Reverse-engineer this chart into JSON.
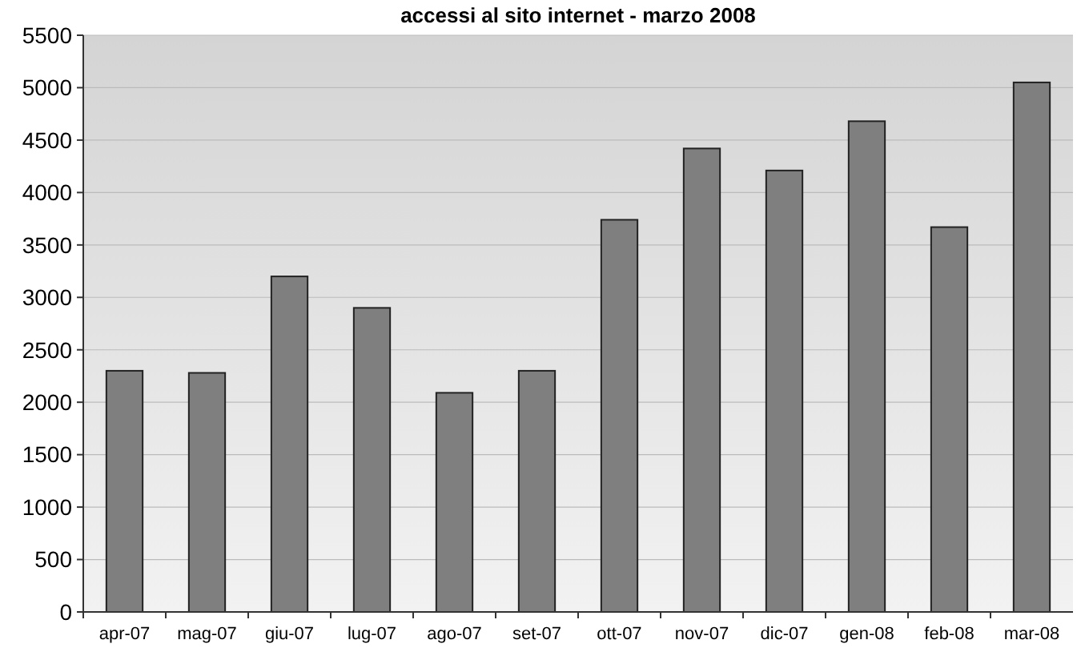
{
  "chart_data": {
    "type": "bar",
    "title": "accessi al sito internet - marzo 2008",
    "categories": [
      "apr-07",
      "mag-07",
      "giu-07",
      "lug-07",
      "ago-07",
      "set-07",
      "ott-07",
      "nov-07",
      "dic-07",
      "gen-08",
      "feb-08",
      "mar-08"
    ],
    "values": [
      2300,
      2280,
      3200,
      2900,
      2090,
      2300,
      3740,
      4420,
      4210,
      4680,
      3670,
      5050
    ],
    "color": "#7f7f7f",
    "ylim": [
      0,
      5500
    ],
    "yticks": [
      0,
      500,
      1000,
      1500,
      2000,
      2500,
      3000,
      3500,
      4000,
      4500,
      5000,
      5500
    ],
    "grid": "y"
  }
}
